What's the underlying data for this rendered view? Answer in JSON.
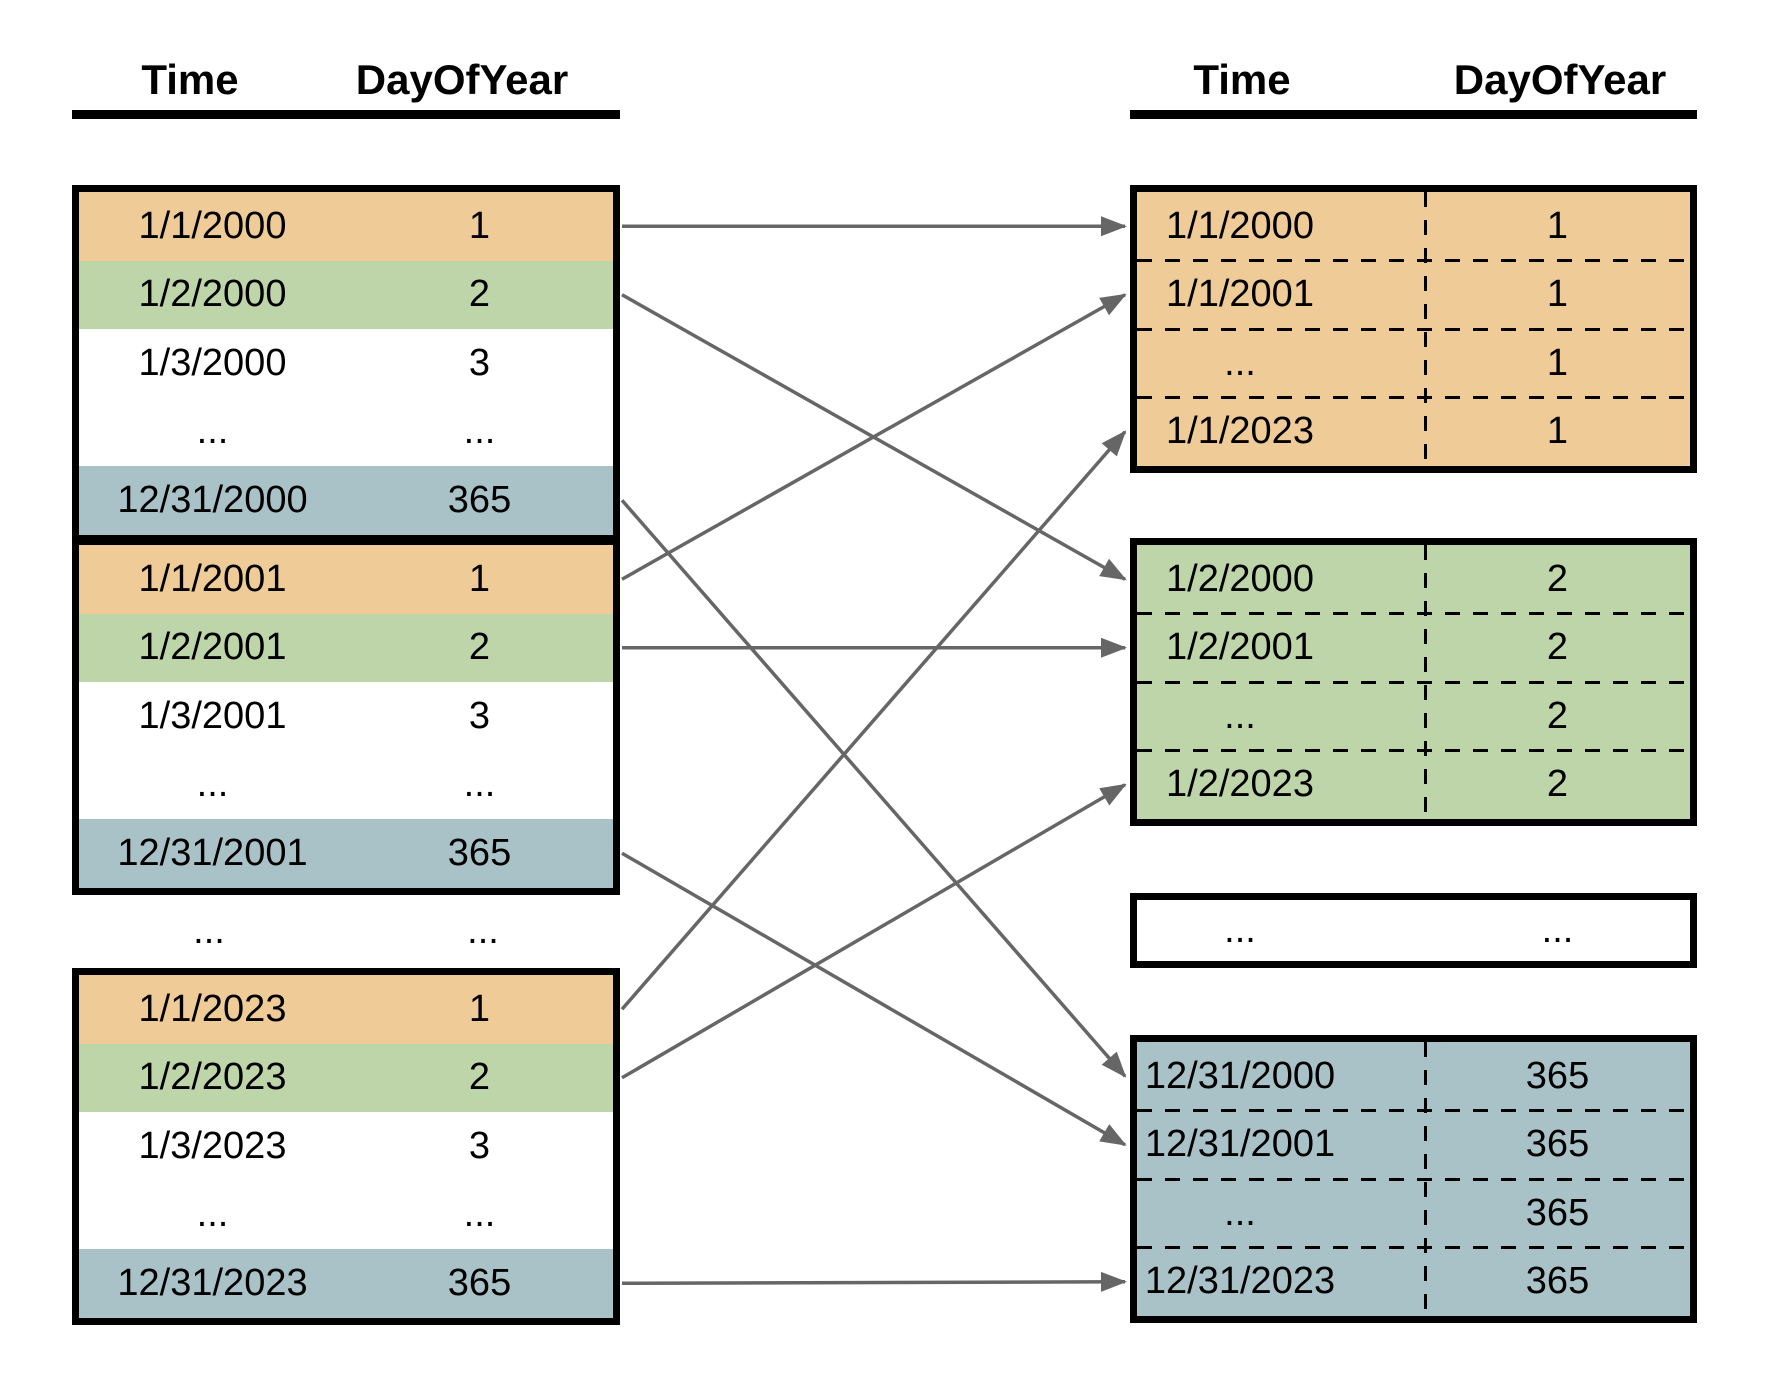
{
  "diagram": {
    "colors": {
      "orange": "#efcb97",
      "green": "#bdd5a9",
      "blue": "#a8c2c8",
      "arrow": "#666666",
      "border": "#000000"
    },
    "left_panel": {
      "header": {
        "time": "Time",
        "dayofyear": "DayOfYear"
      },
      "between_ellipsis": {
        "time": "...",
        "dayofyear": "..."
      },
      "tables": [
        {
          "name": "year-2000",
          "rows": [
            {
              "time": "1/1/2000",
              "day": "1",
              "color": "orange"
            },
            {
              "time": "1/2/2000",
              "day": "2",
              "color": "green"
            },
            {
              "time": "1/3/2000",
              "day": "3",
              "color": "white"
            },
            {
              "time": "...",
              "day": "...",
              "color": "white"
            },
            {
              "time": "12/31/2000",
              "day": "365",
              "color": "blue"
            }
          ]
        },
        {
          "name": "year-2001",
          "rows": [
            {
              "time": "1/1/2001",
              "day": "1",
              "color": "orange"
            },
            {
              "time": "1/2/2001",
              "day": "2",
              "color": "green"
            },
            {
              "time": "1/3/2001",
              "day": "3",
              "color": "white"
            },
            {
              "time": "...",
              "day": "...",
              "color": "white"
            },
            {
              "time": "12/31/2001",
              "day": "365",
              "color": "blue"
            }
          ]
        },
        {
          "name": "year-2023",
          "rows": [
            {
              "time": "1/1/2023",
              "day": "1",
              "color": "orange"
            },
            {
              "time": "1/2/2023",
              "day": "2",
              "color": "green"
            },
            {
              "time": "1/3/2023",
              "day": "3",
              "color": "white"
            },
            {
              "time": "...",
              "day": "...",
              "color": "white"
            },
            {
              "time": "12/31/2023",
              "day": "365",
              "color": "blue"
            }
          ]
        }
      ]
    },
    "right_panel": {
      "header": {
        "time": "Time",
        "dayofyear": "DayOfYear"
      },
      "tables": [
        {
          "name": "day-1",
          "color": "orange",
          "divider": true,
          "rows": [
            {
              "time": "1/1/2000",
              "day": "1"
            },
            {
              "time": "1/1/2001",
              "day": "1"
            },
            {
              "time": "...",
              "day": "1"
            },
            {
              "time": "1/1/2023",
              "day": "1"
            }
          ]
        },
        {
          "name": "day-2",
          "color": "green",
          "divider": true,
          "rows": [
            {
              "time": "1/2/2000",
              "day": "2"
            },
            {
              "time": "1/2/2001",
              "day": "2"
            },
            {
              "time": "...",
              "day": "2"
            },
            {
              "time": "1/2/2023",
              "day": "2"
            }
          ]
        },
        {
          "name": "ellipsis-days",
          "color": "white",
          "divider": false,
          "rows": [
            {
              "time": "...",
              "day": "..."
            }
          ]
        },
        {
          "name": "day-365",
          "color": "blue",
          "divider": true,
          "rows": [
            {
              "time": "12/31/2000",
              "day": "365"
            },
            {
              "time": "12/31/2001",
              "day": "365"
            },
            {
              "time": "...",
              "day": "365"
            },
            {
              "time": "12/31/2023",
              "day": "365"
            }
          ]
        }
      ]
    },
    "arrows": [
      {
        "from": [
          0,
          0
        ],
        "to": [
          0,
          0
        ]
      },
      {
        "from": [
          0,
          1
        ],
        "to": [
          1,
          0
        ]
      },
      {
        "from": [
          0,
          4
        ],
        "to": [
          3,
          0
        ]
      },
      {
        "from": [
          1,
          0
        ],
        "to": [
          0,
          1
        ]
      },
      {
        "from": [
          1,
          1
        ],
        "to": [
          1,
          1
        ]
      },
      {
        "from": [
          1,
          4
        ],
        "to": [
          3,
          1
        ]
      },
      {
        "from": [
          2,
          0
        ],
        "to": [
          0,
          3
        ]
      },
      {
        "from": [
          2,
          1
        ],
        "to": [
          1,
          3
        ]
      },
      {
        "from": [
          2,
          4
        ],
        "to": [
          3,
          3
        ]
      }
    ]
  }
}
